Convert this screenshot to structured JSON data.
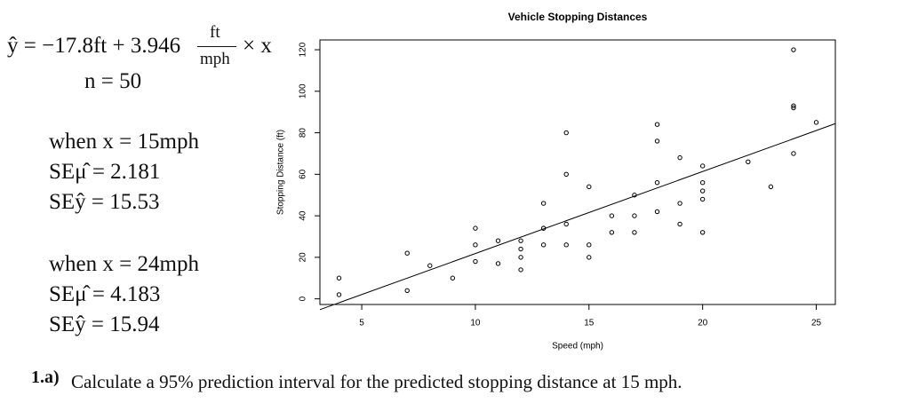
{
  "equation": {
    "lhs": "ŷ = −17.8ft + 3.946",
    "unit_num": "ft",
    "unit_den": "mph",
    "tail": "× x",
    "n": "n = 50"
  },
  "case1": {
    "when": "when x = 15mph",
    "se_mean": "SEμ̂ = 2.181",
    "se_pred": "SEŷ = 15.53"
  },
  "case2": {
    "when": "when x = 24mph",
    "se_mean": "SEμ̂ = 4.183",
    "se_pred": "SEŷ = 15.94"
  },
  "question": {
    "label": "1.a)",
    "text": "Calculate a 95% prediction interval for the predicted stopping distance at 15 mph."
  },
  "chart_data": {
    "type": "scatter",
    "title": "Vehicle Stopping Distances",
    "x_label": "Speed (mph)",
    "y_label": "Stopping Distance (ft)",
    "x": [
      4,
      4,
      7,
      7,
      8,
      9,
      10,
      10,
      10,
      11,
      11,
      12,
      12,
      12,
      12,
      13,
      13,
      13,
      13,
      14,
      14,
      14,
      14,
      15,
      15,
      15,
      16,
      16,
      17,
      17,
      17,
      18,
      18,
      18,
      18,
      19,
      19,
      19,
      20,
      20,
      20,
      20,
      20,
      22,
      23,
      24,
      24,
      24,
      24,
      25
    ],
    "y": [
      2,
      10,
      4,
      22,
      16,
      10,
      18,
      26,
      34,
      17,
      28,
      14,
      20,
      24,
      28,
      26,
      34,
      34,
      46,
      26,
      36,
      60,
      80,
      20,
      26,
      54,
      32,
      40,
      32,
      40,
      50,
      42,
      56,
      76,
      84,
      36,
      46,
      68,
      32,
      48,
      52,
      56,
      64,
      66,
      54,
      70,
      92,
      93,
      120,
      85
    ],
    "color": "#000000",
    "trend_line": {
      "x": [
        3.16,
        25.84
      ],
      "y": [
        -5.2,
        84.4
      ]
    },
    "xlim": [
      3.16,
      25.84
    ],
    "ylim": [
      -2.72,
      124.72
    ],
    "xticks": [
      5,
      10,
      15,
      20,
      25
    ],
    "yticks": [
      0,
      20,
      40,
      60,
      80,
      100,
      120
    ]
  }
}
